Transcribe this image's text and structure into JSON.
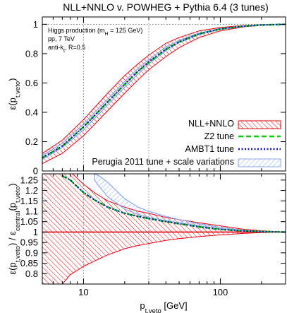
{
  "chart_data": [
    {
      "type": "area",
      "panel": "top",
      "title": "NLL+NNLO v. POWHEG + Pythia 6.4 (3 tunes)",
      "ylabel": "ε(p",
      "ylabel_sub": "t,veto",
      "ylabel_end": ")",
      "xscale": "log",
      "xlim": [
        5,
        300
      ],
      "ylim": [
        0,
        1.05
      ],
      "yticks": [
        0,
        0.2,
        0.4,
        0.6,
        0.8,
        1
      ],
      "ytick_labels": [
        "0",
        "0.2",
        "0.4",
        "0.6",
        "0.8",
        "1"
      ],
      "grid": "dotted lines at x=10, x=30, y=1",
      "annotations": [
        "Higgs production (m",
        "H",
        " = 125 GeV)",
        "pp, 7 TeV",
        "anti-k",
        "t",
        ", R=0.5"
      ],
      "legend_position": "bottom-right",
      "series": [
        {
          "name": "NLL+NNLO",
          "style": "red hatched band",
          "x": [
            5,
            7,
            10,
            15,
            20,
            25,
            30,
            40,
            50,
            70,
            100,
            150,
            200,
            300
          ],
          "lower": [
            0.05,
            0.12,
            0.24,
            0.41,
            0.53,
            0.62,
            0.69,
            0.78,
            0.84,
            0.91,
            0.955,
            0.983,
            0.993,
            1.0
          ],
          "upper": [
            0.12,
            0.21,
            0.35,
            0.53,
            0.65,
            0.73,
            0.79,
            0.87,
            0.91,
            0.955,
            0.978,
            0.992,
            0.997,
            1.0
          ]
        },
        {
          "name": "Z2 tune",
          "style": "green dashed",
          "x": [
            5,
            7,
            10,
            15,
            20,
            25,
            30,
            40,
            50,
            70,
            100,
            150,
            200,
            300
          ],
          "y": [
            0.09,
            0.17,
            0.3,
            0.47,
            0.59,
            0.68,
            0.74,
            0.83,
            0.88,
            0.935,
            0.968,
            0.988,
            0.995,
            1.0
          ]
        },
        {
          "name": "AMBT1 tune",
          "style": "blue dotted",
          "x": [
            5,
            7,
            10,
            15,
            20,
            25,
            30,
            40,
            50,
            70,
            100,
            150,
            200,
            300
          ],
          "y": [
            0.09,
            0.17,
            0.3,
            0.47,
            0.59,
            0.68,
            0.745,
            0.83,
            0.88,
            0.935,
            0.968,
            0.988,
            0.995,
            1.0
          ]
        },
        {
          "name": "Perugia 2011 tune + scale variations",
          "style": "light blue band",
          "x": [
            5,
            7,
            10,
            15,
            20,
            25,
            30,
            40,
            50,
            70,
            100,
            150,
            200,
            300
          ],
          "lower": [
            0.08,
            0.16,
            0.28,
            0.45,
            0.57,
            0.66,
            0.73,
            0.82,
            0.875,
            0.93,
            0.965,
            0.987,
            0.994,
            1.0
          ],
          "upper": [
            0.105,
            0.19,
            0.32,
            0.49,
            0.61,
            0.7,
            0.76,
            0.845,
            0.89,
            0.94,
            0.972,
            0.99,
            0.996,
            1.0
          ]
        }
      ]
    },
    {
      "type": "area",
      "panel": "bottom",
      "xlabel": "p",
      "xlabel_sub": "t,veto",
      "xlabel_end": " [GeV]",
      "ylabel": "ε(p",
      "ylabel_sub": "t,veto",
      "ylabel_mid": ") / ε",
      "ylabel_sub2": "central",
      "ylabel_mid2": "(p",
      "ylabel_sub3": "t,veto",
      "ylabel_end": ")",
      "xscale": "log",
      "xlim": [
        5,
        300
      ],
      "ylim": [
        0.75,
        1.28
      ],
      "xticks": [
        10,
        100
      ],
      "xtick_labels": [
        "10",
        "100"
      ],
      "yticks": [
        0.8,
        0.85,
        0.9,
        0.95,
        1,
        1.05,
        1.1,
        1.15,
        1.2,
        1.25
      ],
      "ytick_labels": [
        "0.8",
        "0.85",
        "0.9",
        "0.95",
        "1",
        "1.05",
        "1.1",
        "1.15",
        "1.2",
        "1.25"
      ],
      "grid": "dotted lines at x=10, x=30",
      "series": [
        {
          "name": "NLL+NNLO",
          "style": "red hatched band with red central line at 1",
          "x": [
            5,
            6,
            7,
            8,
            10,
            12,
            15,
            20,
            25,
            30,
            40,
            50,
            70,
            100,
            150,
            200,
            300
          ],
          "lower": [
            0.7,
            0.7,
            0.75,
            0.795,
            0.835,
            0.86,
            0.89,
            0.92,
            0.935,
            0.945,
            0.96,
            0.968,
            0.978,
            0.986,
            0.994,
            0.997,
            1.0
          ],
          "upper": [
            1.3,
            1.3,
            1.3,
            1.29,
            1.23,
            1.19,
            1.15,
            1.12,
            1.1,
            1.09,
            1.07,
            1.06,
            1.045,
            1.03,
            1.013,
            1.006,
            1.0
          ],
          "central": 1
        },
        {
          "name": "Z2 tune",
          "style": "green dashed",
          "x": [
            7,
            8,
            10,
            12,
            15,
            20,
            25,
            30,
            40,
            50,
            70,
            100,
            150,
            200,
            300
          ],
          "y": [
            1.27,
            1.25,
            1.19,
            1.155,
            1.12,
            1.09,
            1.075,
            1.065,
            1.05,
            1.04,
            1.025,
            1.013,
            1.005,
            1.002,
            1.0
          ]
        },
        {
          "name": "AMBT1 tune",
          "style": "blue dotted",
          "x": [
            7,
            8,
            10,
            12,
            15,
            20,
            25,
            30,
            40,
            50,
            70,
            100,
            150,
            200,
            300
          ],
          "y": [
            1.27,
            1.25,
            1.19,
            1.155,
            1.12,
            1.09,
            1.075,
            1.065,
            1.05,
            1.04,
            1.025,
            1.013,
            1.005,
            1.002,
            1.0
          ]
        },
        {
          "name": "Perugia 2011 tune + scale variations",
          "style": "light blue band",
          "x": [
            12,
            13,
            15,
            20,
            25,
            30,
            40,
            50,
            70,
            100,
            150,
            200,
            300
          ],
          "lower": [
            1.25,
            1.22,
            1.17,
            1.11,
            1.085,
            1.07,
            1.055,
            1.045,
            1.03,
            1.016,
            1.006,
            1.002,
            1.0
          ],
          "upper": [
            1.28,
            1.27,
            1.24,
            1.16,
            1.12,
            1.1,
            1.075,
            1.06,
            1.04,
            1.022,
            1.008,
            1.003,
            1.0
          ]
        }
      ]
    }
  ],
  "colors": {
    "red": "#e8000b",
    "green": "#00d000",
    "blue": "#1010c0",
    "lightblue": "#8aa6f0"
  }
}
